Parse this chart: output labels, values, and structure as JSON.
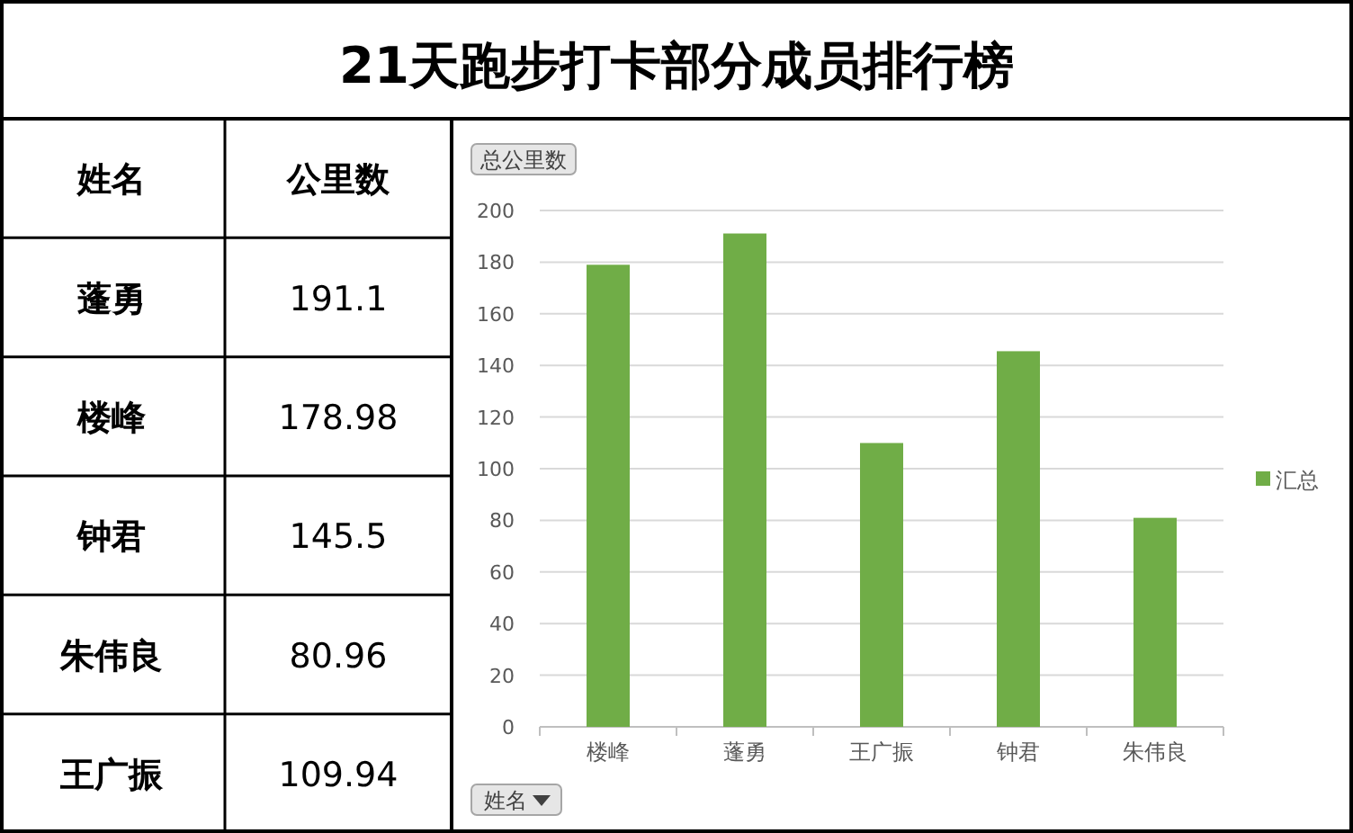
{
  "chart_data": [
    {
      "type": "other",
      "title": "21天跑步打卡部分成员排行榜",
      "xlabel": "姓名",
      "ylabel": "公里数",
      "categories": [
        "蓬勇",
        "楼峰",
        "钟君",
        "朱伟良",
        "王广振"
      ],
      "values": [
        191.1,
        178.98,
        145.5,
        80.96,
        109.94
      ],
      "data_labels": true
    },
    {
      "type": "bar",
      "ylabel": "总公里数",
      "xlabel": "姓名",
      "categories": [
        "楼峰",
        "蓬勇",
        "王广振",
        "钟君",
        "朱伟良"
      ],
      "series": [
        {
          "name": "汇总",
          "color": "#70ad47",
          "values": [
            178.98,
            191.1,
            109.94,
            145.5,
            80.96
          ]
        }
      ],
      "ylim": [
        0,
        200
      ],
      "yticks": [
        0,
        20,
        40,
        60,
        80,
        100,
        120,
        140,
        160,
        180,
        200
      ],
      "grid": "y",
      "legend": "right"
    }
  ]
}
